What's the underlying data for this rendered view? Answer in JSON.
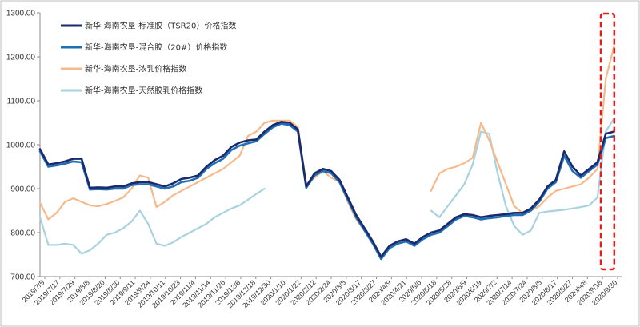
{
  "chart_data": {
    "type": "line",
    "title": "",
    "xlabel": "",
    "ylabel": "",
    "ylim": [
      700,
      1300
    ],
    "yticks": [
      "700.00",
      "800.00",
      "900.00",
      "1000.00",
      "1100.00",
      "1200.00",
      "1300.00"
    ],
    "xticks": [
      "2019/7/5",
      "2019/7/17",
      "2019/7/29",
      "2019/8/8",
      "2019/8/20",
      "2019/8/30",
      "2019/9/11",
      "2019/9/24",
      "2019/10/11",
      "2019/10/23",
      "2019/11/4",
      "2019/11/14",
      "2019/11/26",
      "2019/12/6",
      "2019/12/18",
      "2019/12/30",
      "2020/1/10",
      "2020/1/22",
      "2020/2/12",
      "2020/2/24",
      "2020/3/5",
      "2020/3/17",
      "2020/3/27",
      "2020/4/9",
      "2020/4/21",
      "2020/5/6",
      "2020/5/18",
      "2020/5/28",
      "2020/6/9",
      "2020/6/19",
      "2020/7/2",
      "2020/7/14",
      "2020/7/24",
      "2020/8/5",
      "2020/8/17",
      "2020/8/27",
      "2020/9/8",
      "2020/9/18",
      "2020/9/30"
    ],
    "grid": false,
    "legend_position": "top-left",
    "highlight": {
      "style": "dashed-box",
      "color": "#e02020",
      "x_range": [
        67.5,
        69.5
      ]
    },
    "series": [
      {
        "name": "新华-海南农垦-标准胶（TSR20）价格指数",
        "color": "#1a2a6c",
        "points": [
          [
            0,
            990
          ],
          [
            1,
            955
          ],
          [
            2,
            958
          ],
          [
            3,
            962
          ],
          [
            4,
            968
          ],
          [
            5,
            968
          ],
          [
            6,
            902
          ],
          [
            7,
            903
          ],
          [
            8,
            902
          ],
          [
            9,
            905
          ],
          [
            10,
            905
          ],
          [
            11,
            912
          ],
          [
            12,
            915
          ],
          [
            13,
            915
          ],
          [
            14,
            910
          ],
          [
            15,
            905
          ],
          [
            16,
            912
          ],
          [
            17,
            922
          ],
          [
            18,
            925
          ],
          [
            19,
            930
          ],
          [
            20,
            950
          ],
          [
            21,
            965
          ],
          [
            22,
            975
          ],
          [
            23,
            995
          ],
          [
            24,
            1005
          ],
          [
            25,
            1010
          ],
          [
            26,
            1012
          ],
          [
            27,
            1030
          ],
          [
            28,
            1045
          ],
          [
            29,
            1052
          ],
          [
            30,
            1050
          ],
          [
            31,
            1035
          ],
          [
            32,
            905
          ],
          [
            33,
            935
          ],
          [
            34,
            945
          ],
          [
            35,
            940
          ],
          [
            36,
            920
          ],
          [
            37,
            880
          ],
          [
            38,
            840
          ],
          [
            39,
            810
          ],
          [
            40,
            780
          ],
          [
            41,
            745
          ],
          [
            42,
            770
          ],
          [
            43,
            780
          ],
          [
            44,
            785
          ],
          [
            45,
            775
          ],
          [
            46,
            790
          ],
          [
            47,
            800
          ],
          [
            48,
            805
          ],
          [
            49,
            820
          ],
          [
            50,
            835
          ],
          [
            51,
            842
          ],
          [
            52,
            840
          ],
          [
            53,
            835
          ],
          [
            54,
            838
          ],
          [
            55,
            840
          ],
          [
            56,
            842
          ],
          [
            57,
            845
          ],
          [
            58,
            845
          ],
          [
            59,
            855
          ],
          [
            60,
            875
          ],
          [
            61,
            905
          ],
          [
            62,
            920
          ],
          [
            63,
            985
          ],
          [
            64,
            950
          ],
          [
            65,
            930
          ],
          [
            66,
            945
          ],
          [
            67,
            960
          ],
          [
            68,
            1025
          ],
          [
            69,
            1030
          ]
        ]
      },
      {
        "name": "新华-海南农垦-混合胶（20#）价格指数",
        "color": "#1f6fb4",
        "points": [
          [
            0,
            985
          ],
          [
            1,
            950
          ],
          [
            2,
            953
          ],
          [
            3,
            957
          ],
          [
            4,
            962
          ],
          [
            5,
            960
          ],
          [
            6,
            898
          ],
          [
            7,
            899
          ],
          [
            8,
            898
          ],
          [
            9,
            900
          ],
          [
            10,
            900
          ],
          [
            11,
            908
          ],
          [
            12,
            910
          ],
          [
            13,
            910
          ],
          [
            14,
            905
          ],
          [
            15,
            900
          ],
          [
            16,
            905
          ],
          [
            17,
            915
          ],
          [
            18,
            918
          ],
          [
            19,
            925
          ],
          [
            20,
            945
          ],
          [
            21,
            958
          ],
          [
            22,
            968
          ],
          [
            23,
            988
          ],
          [
            24,
            998
          ],
          [
            25,
            1003
          ],
          [
            26,
            1008
          ],
          [
            27,
            1025
          ],
          [
            28,
            1040
          ],
          [
            29,
            1048
          ],
          [
            30,
            1045
          ],
          [
            31,
            1030
          ],
          [
            32,
            902
          ],
          [
            33,
            930
          ],
          [
            34,
            940
          ],
          [
            35,
            935
          ],
          [
            36,
            915
          ],
          [
            37,
            875
          ],
          [
            38,
            835
          ],
          [
            39,
            805
          ],
          [
            40,
            775
          ],
          [
            41,
            740
          ],
          [
            42,
            765
          ],
          [
            43,
            775
          ],
          [
            44,
            780
          ],
          [
            45,
            770
          ],
          [
            46,
            785
          ],
          [
            47,
            795
          ],
          [
            48,
            800
          ],
          [
            49,
            815
          ],
          [
            50,
            830
          ],
          [
            51,
            838
          ],
          [
            52,
            835
          ],
          [
            53,
            830
          ],
          [
            54,
            833
          ],
          [
            55,
            835
          ],
          [
            56,
            838
          ],
          [
            57,
            840
          ],
          [
            58,
            840
          ],
          [
            59,
            850
          ],
          [
            60,
            870
          ],
          [
            61,
            900
          ],
          [
            62,
            915
          ],
          [
            63,
            975
          ],
          [
            64,
            940
          ],
          [
            65,
            925
          ],
          [
            66,
            940
          ],
          [
            67,
            955
          ],
          [
            68,
            1015
          ],
          [
            69,
            1020
          ]
        ]
      },
      {
        "name": "新华-海南农垦-浓乳价格指数",
        "color": "#f5b98a",
        "segments": [
          [
            [
              0,
              868
            ],
            [
              1,
              830
            ],
            [
              2,
              845
            ],
            [
              3,
              870
            ],
            [
              4,
              878
            ],
            [
              5,
              870
            ],
            [
              6,
              862
            ],
            [
              7,
              860
            ],
            [
              8,
              865
            ],
            [
              9,
              872
            ],
            [
              10,
              880
            ],
            [
              11,
              900
            ],
            [
              12,
              930
            ],
            [
              13,
              925
            ],
            [
              14,
              858
            ],
            [
              15,
              870
            ],
            [
              16,
              885
            ],
            [
              17,
              895
            ],
            [
              18,
              905
            ],
            [
              19,
              915
            ],
            [
              20,
              925
            ],
            [
              21,
              935
            ],
            [
              22,
              945
            ],
            [
              23,
              960
            ],
            [
              24,
              975
            ],
            [
              25,
              1020
            ],
            [
              26,
              1030
            ],
            [
              27,
              1050
            ],
            [
              28,
              1055
            ],
            [
              29,
              1055
            ],
            [
              30,
              1055
            ],
            [
              31,
              1040
            ],
            [
              32,
              910
            ],
            [
              33,
              925
            ],
            [
              34,
              940
            ],
            [
              35,
              925
            ],
            [
              36,
              915
            ],
            [
              37,
              870
            ],
            [
              38,
              830
            ],
            [
              39,
              805
            ],
            [
              40,
              775
            ],
            [
              41,
              745
            ],
            [
              42,
              770
            ],
            [
              43,
              780
            ],
            [
              44,
              785
            ],
            [
              45,
              775
            ],
            [
              46,
              790
            ]
          ],
          [
            [
              47,
              895
            ],
            [
              48,
              935
            ],
            [
              49,
              945
            ],
            [
              50,
              950
            ],
            [
              51,
              958
            ],
            [
              52,
              970
            ],
            [
              53,
              1050
            ],
            [
              54,
              1010
            ],
            [
              55,
              960
            ],
            [
              56,
              910
            ],
            [
              57,
              860
            ],
            [
              58,
              845
            ],
            [
              59,
              850
            ],
            [
              60,
              860
            ],
            [
              61,
              880
            ],
            [
              62,
              895
            ],
            [
              63,
              900
            ],
            [
              64,
              905
            ],
            [
              65,
              910
            ],
            [
              66,
              925
            ],
            [
              67,
              945
            ],
            [
              68,
              1150
            ],
            [
              69,
              1225
            ]
          ]
        ]
      },
      {
        "name": "新华-海南农垦-天然胶乳价格指数",
        "color": "#a8d2e0",
        "segments": [
          [
            [
              0,
              835
            ],
            [
              1,
              772
            ],
            [
              2,
              772
            ],
            [
              3,
              775
            ],
            [
              4,
              772
            ],
            [
              5,
              752
            ],
            [
              6,
              760
            ],
            [
              7,
              775
            ],
            [
              8,
              795
            ],
            [
              9,
              800
            ],
            [
              10,
              810
            ],
            [
              11,
              825
            ],
            [
              12,
              850
            ],
            [
              13,
              820
            ],
            [
              14,
              775
            ],
            [
              15,
              770
            ],
            [
              16,
              778
            ],
            [
              17,
              790
            ],
            [
              18,
              800
            ],
            [
              19,
              810
            ],
            [
              20,
              820
            ],
            [
              21,
              835
            ],
            [
              22,
              845
            ],
            [
              23,
              855
            ],
            [
              24,
              862
            ],
            [
              25,
              875
            ],
            [
              26,
              888
            ],
            [
              27,
              900
            ]
          ],
          [
            [
              47,
              850
            ],
            [
              48,
              835
            ],
            [
              49,
              860
            ],
            [
              50,
              885
            ],
            [
              51,
              910
            ],
            [
              52,
              955
            ],
            [
              53,
              1030
            ],
            [
              54,
              1025
            ],
            [
              55,
              935
            ],
            [
              56,
              860
            ],
            [
              57,
              815
            ],
            [
              58,
              795
            ],
            [
              59,
              805
            ],
            [
              60,
              845
            ],
            [
              61,
              848
            ],
            [
              62,
              850
            ],
            [
              63,
              852
            ],
            [
              64,
              855
            ],
            [
              65,
              858
            ],
            [
              66,
              862
            ],
            [
              67,
              880
            ],
            [
              68,
              1030
            ],
            [
              69,
              1060
            ]
          ]
        ]
      }
    ]
  }
}
